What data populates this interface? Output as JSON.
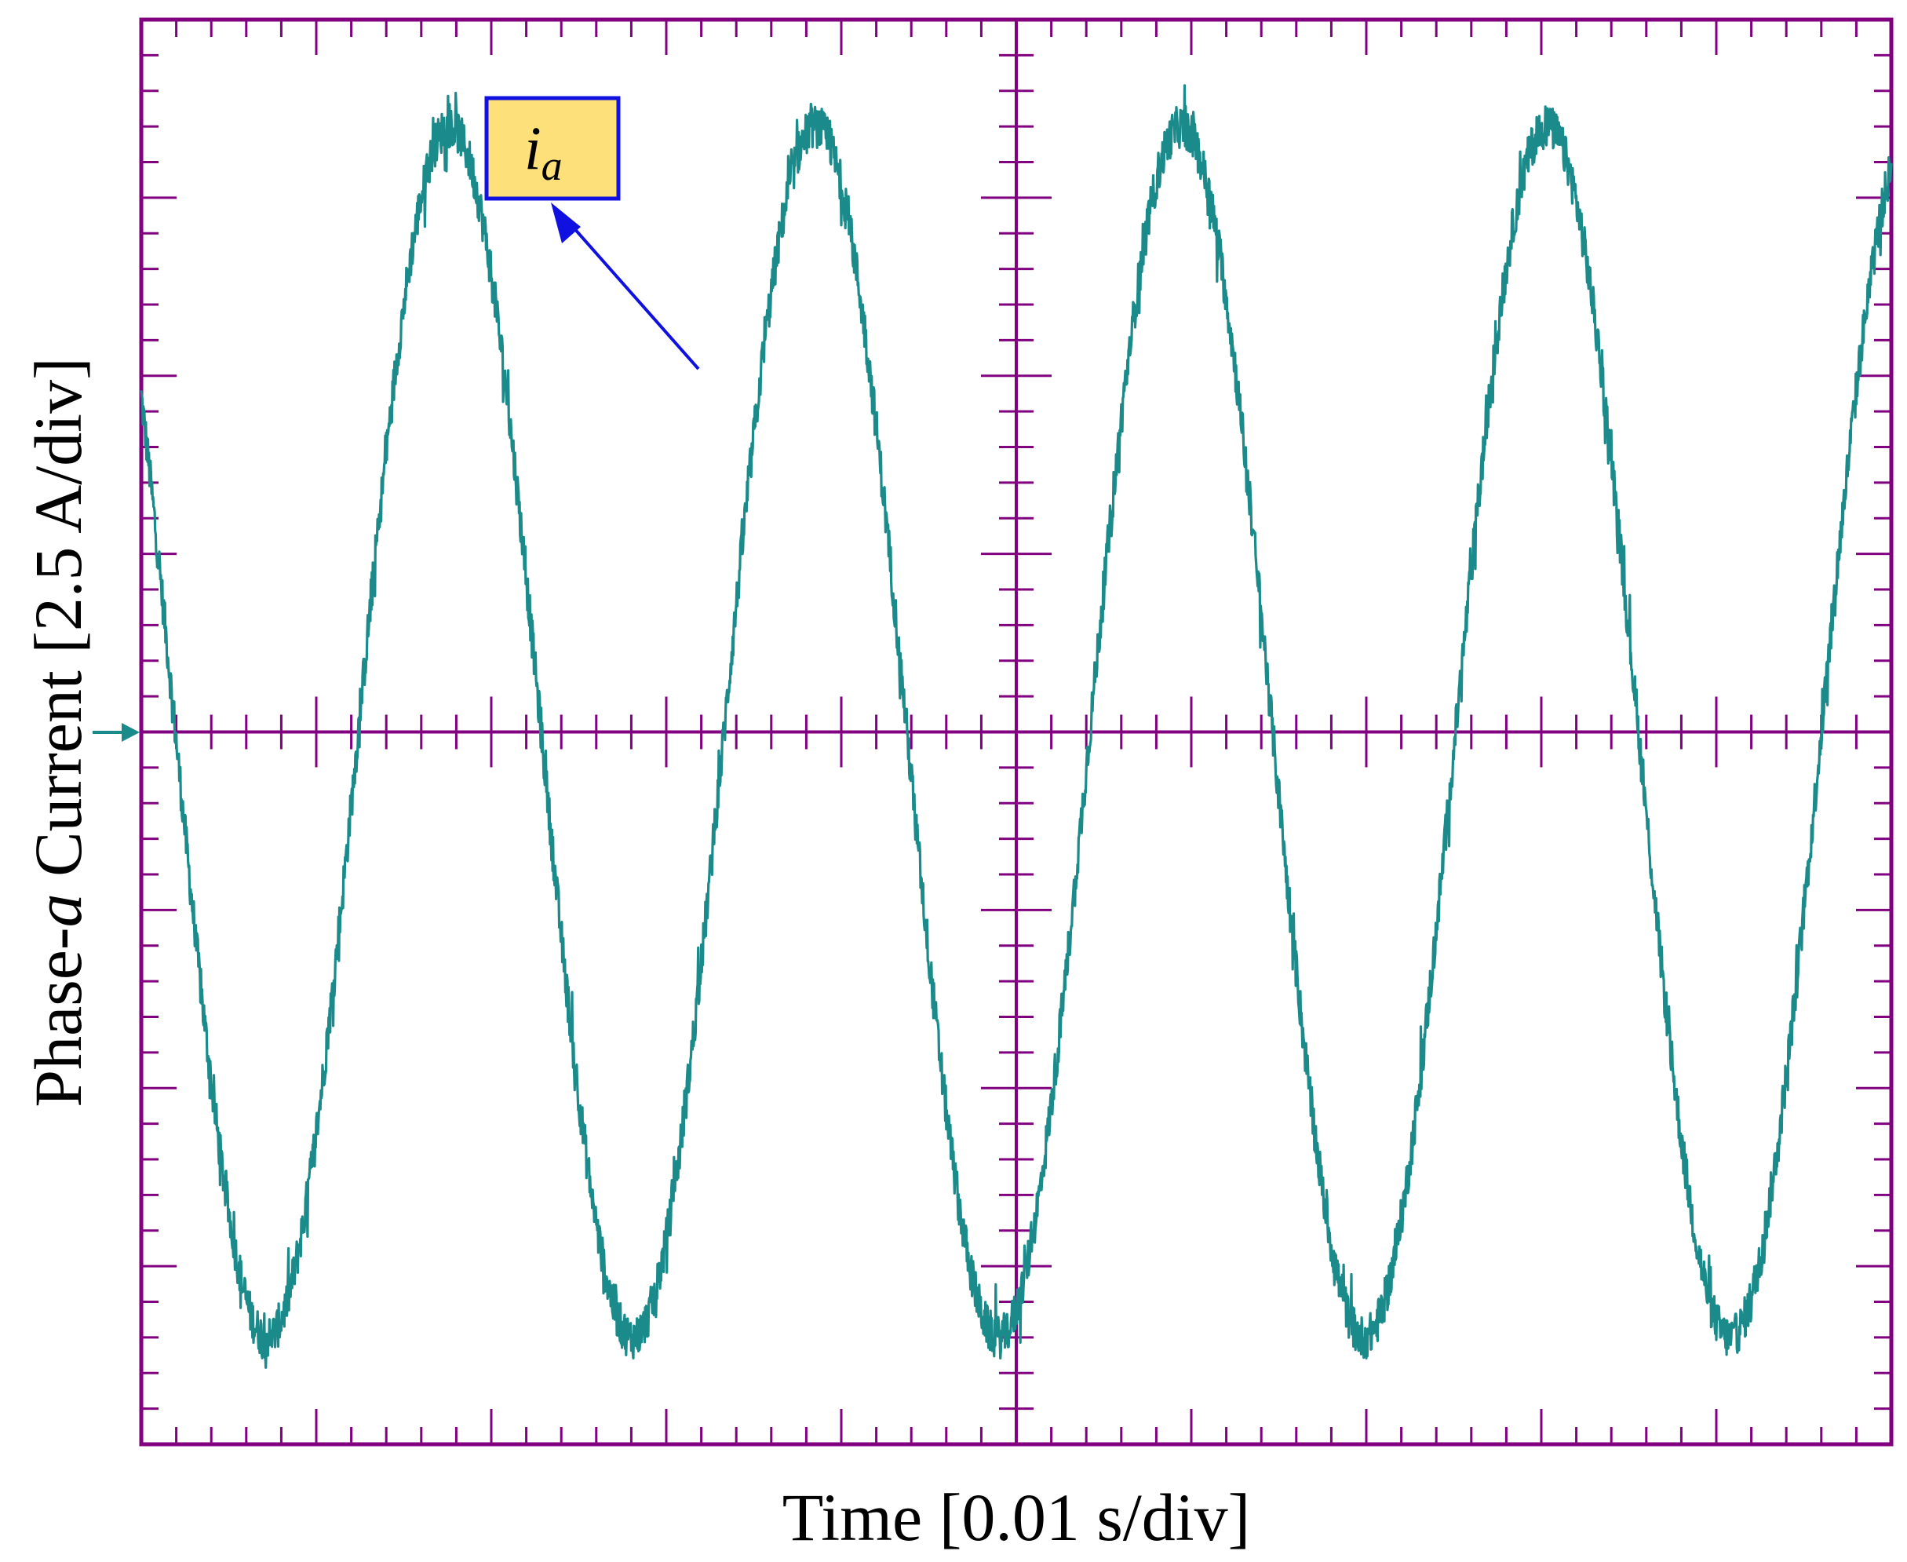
{
  "chart_data": {
    "type": "line",
    "title": "",
    "xlabel": "Time [0.01 s/div]",
    "ylabel": {
      "prefix": "Phase-",
      "italic": "a",
      "suffix": " Current [2.5 A/div]"
    },
    "x_divisions": 10,
    "y_divisions": 8,
    "xlim": [
      0,
      10
    ],
    "ylim": [
      -4,
      4
    ],
    "grid": "oscilloscope-crosshair",
    "series": [
      {
        "name": "i_a",
        "color": "#1a8a8a",
        "amplitude_div": 3.4,
        "period_div": 2.09,
        "phase_offset_div": 1.24,
        "noise_div": 0.12,
        "waveform": "sine"
      }
    ],
    "annotation": {
      "label_main": "i",
      "label_sub": "a",
      "box_fill": "#fde07a",
      "box_border": "#1010e0",
      "arrow_color": "#1010e0"
    },
    "ground_marker_color": "#1a8a8a",
    "frame_color": "#800080"
  }
}
